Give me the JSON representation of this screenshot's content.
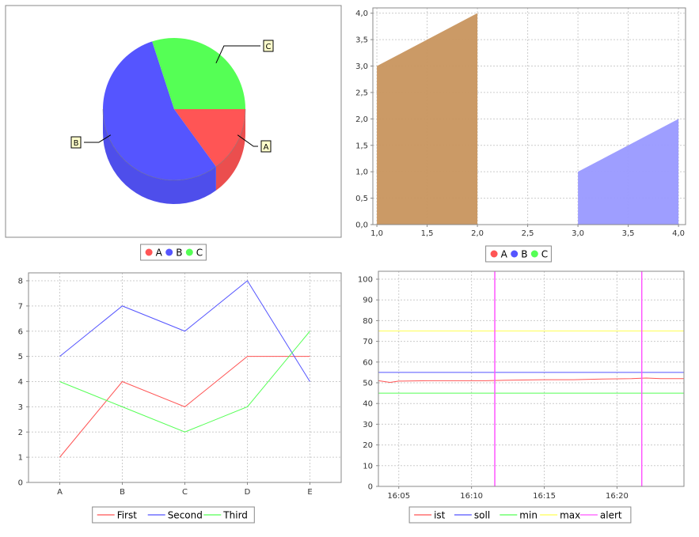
{
  "chart_data": [
    {
      "type": "pie",
      "three_d": true,
      "labels": [
        "A",
        "B",
        "C"
      ],
      "values": [
        15,
        55,
        30
      ],
      "colors": [
        "#ff5555",
        "#5555ff",
        "#55ff55"
      ],
      "legend": {
        "position": "bottom",
        "entries": [
          "A",
          "B",
          "C"
        ]
      }
    },
    {
      "type": "area",
      "x_ticks": [
        "1,0",
        "1,5",
        "2,0",
        "2,5",
        "3,0",
        "3,5",
        "4,0"
      ],
      "y_ticks": [
        "0,0",
        "0,5",
        "1,0",
        "1,5",
        "2,0",
        "2,5",
        "3,0",
        "3,5",
        "4,0"
      ],
      "xlim": [
        0.96,
        4.07
      ],
      "ylim": [
        0,
        4.1
      ],
      "series": [
        {
          "name": "A",
          "color": "#c8955e",
          "points": [
            [
              1.0,
              3.0
            ],
            [
              2.0,
              4.0
            ]
          ]
        },
        {
          "name": "B",
          "color": "#9999ff",
          "points": [
            [
              3.0,
              1.0
            ],
            [
              4.0,
              2.0
            ]
          ]
        },
        {
          "name": "C",
          "color": "#55ff55",
          "points": []
        }
      ],
      "grid": true,
      "legend": {
        "position": "bottom",
        "entries": [
          "A",
          "B",
          "C"
        ],
        "colors": [
          "#ff5555",
          "#5555ff",
          "#55ff55"
        ]
      }
    },
    {
      "type": "line",
      "categories": [
        "A",
        "B",
        "C",
        "D",
        "E"
      ],
      "y_ticks": [
        "0",
        "1",
        "2",
        "3",
        "4",
        "5",
        "6",
        "7",
        "8"
      ],
      "ylim": [
        0,
        8
      ],
      "series": [
        {
          "name": "First",
          "color": "#ff5555",
          "values": [
            1,
            4,
            3,
            5,
            5
          ]
        },
        {
          "name": "Second",
          "color": "#5555ff",
          "values": [
            5,
            7,
            6,
            8,
            4
          ]
        },
        {
          "name": "Third",
          "color": "#55ff55",
          "values": [
            4,
            3,
            2,
            3,
            6
          ]
        }
      ],
      "grid": true,
      "legend": {
        "position": "bottom",
        "entries": [
          "First",
          "Second",
          "Third"
        ]
      }
    },
    {
      "type": "line",
      "x_ticks": [
        "16:05",
        "16:10",
        "16:15",
        "16:20"
      ],
      "x_tick_minutes": [
        5,
        10,
        15,
        20
      ],
      "xlim_minutes": [
        3.6,
        24.6
      ],
      "y_ticks": [
        "0",
        "10",
        "20",
        "30",
        "40",
        "50",
        "60",
        "70",
        "80",
        "90",
        "100"
      ],
      "ylim": [
        0,
        100
      ],
      "series": [
        {
          "name": "ist",
          "color": "#ff5555",
          "minutes": [
            3.6,
            4.4,
            5,
            7,
            9,
            11,
            13,
            15,
            17,
            19,
            21,
            22,
            23,
            24.6
          ],
          "values": [
            51,
            50.2,
            50.8,
            51,
            51,
            51,
            51.3,
            51.5,
            51.5,
            51.8,
            52,
            52.3,
            52,
            52
          ]
        },
        {
          "name": "soll",
          "color": "#5555ff",
          "constant": 55
        },
        {
          "name": "min",
          "color": "#55ff55",
          "constant": 45
        },
        {
          "name": "max",
          "color": "#ffff55",
          "constant": 75
        },
        {
          "name": "alert",
          "color": "#ff55ff",
          "vertical_minutes": [
            11.6,
            21.7
          ]
        }
      ],
      "grid": true,
      "legend": {
        "position": "bottom",
        "entries": [
          "ist",
          "soll",
          "min",
          "max",
          "alert"
        ]
      }
    }
  ]
}
